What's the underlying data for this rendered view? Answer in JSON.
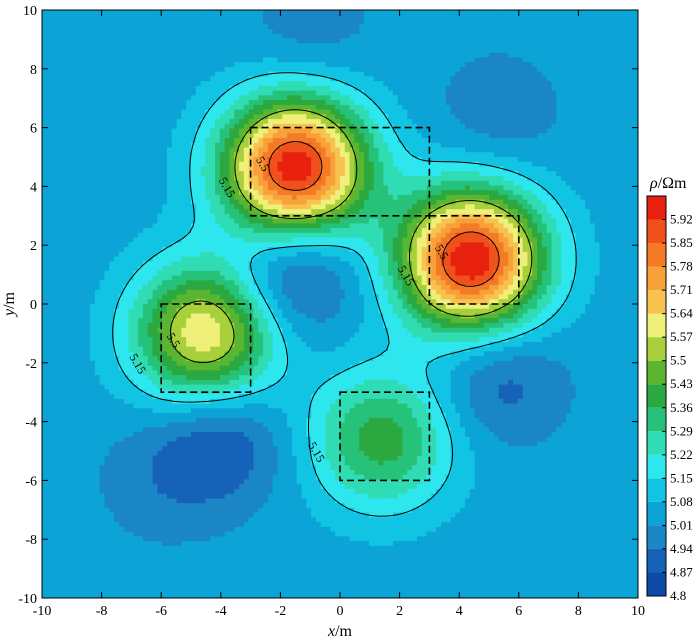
{
  "chart_data": {
    "type": "heatmap",
    "subtype": "filled-contour",
    "xlabel": {
      "var": "x",
      "unit": "/m"
    },
    "ylabel": {
      "var": "y",
      "unit": "/m"
    },
    "xlim": [
      -10,
      10
    ],
    "ylim": [
      -10,
      10
    ],
    "xticks": [
      "-10",
      "-8",
      "-6",
      "-4",
      "-2",
      "0",
      "2",
      "4",
      "6",
      "8",
      "10"
    ],
    "yticks": [
      "-10",
      "-8",
      "-6",
      "-4",
      "-2",
      "0",
      "2",
      "4",
      "6",
      "8",
      "10"
    ],
    "colorbar": {
      "title_symbol": "ρ",
      "title_unit": "/Ωm",
      "levels": [
        "4.8",
        "4.87",
        "4.94",
        "5.01",
        "5.08",
        "5.15",
        "5.22",
        "5.29",
        "5.36",
        "5.43",
        "5.5",
        "5.57",
        "5.64",
        "5.71",
        "5.78",
        "5.85",
        "5.92"
      ],
      "colors": [
        "#0a2d96",
        "#0e4aa8",
        "#1662b8",
        "#1a86c6",
        "#0ca4d6",
        "#12c4e4",
        "#2ee6ee",
        "#30dcb4",
        "#26c27a",
        "#2ca840",
        "#5ab631",
        "#a8d03a",
        "#eef07a",
        "#f8c24e",
        "#f8a13a",
        "#f47a26",
        "#f0501c",
        "#e8200e"
      ],
      "range": [
        4.8,
        5.99
      ]
    },
    "background_value": 5.04,
    "anomalies": [
      {
        "name": "upper-left",
        "center": [
          -1.5,
          4.6
        ],
        "rect": [
          -3,
          3,
          3,
          6
        ],
        "peak": 5.99,
        "contour_labels": [
          "5.15",
          "5.5"
        ]
      },
      {
        "name": "right",
        "center": [
          4.4,
          1.5
        ],
        "rect": [
          3,
          0,
          6,
          3
        ],
        "peak": 5.99,
        "contour_labels": [
          "5.15",
          "5.5"
        ]
      },
      {
        "name": "left",
        "center": [
          -4.5,
          -1.0
        ],
        "rect": [
          -6,
          -3,
          -3,
          0
        ],
        "peak": 5.64,
        "contour_labels": [
          "5.15",
          "5.5"
        ]
      },
      {
        "name": "lower-middle",
        "center": [
          1.4,
          -4.6
        ],
        "rect": [
          0,
          -6,
          3,
          -3
        ],
        "peak": 5.4,
        "contour_labels": [
          "5.15"
        ]
      }
    ],
    "low_zones": [
      {
        "center": [
          -1.0,
          9.3
        ],
        "value": 4.97
      },
      {
        "center": [
          5.3,
          6.4
        ],
        "value": 4.96
      },
      {
        "center": [
          -1.5,
          1.5
        ],
        "value": 4.86
      },
      {
        "center": [
          -2.0,
          0.2
        ],
        "value": 4.97
      },
      {
        "center": [
          5.3,
          -2.5
        ],
        "value": 4.89
      },
      {
        "center": [
          -4.0,
          -4.6
        ],
        "value": 4.86
      },
      {
        "center": [
          -6.0,
          -6.0
        ],
        "value": 4.97
      }
    ],
    "contour_lines": [
      5.15,
      5.5,
      5.85
    ]
  }
}
